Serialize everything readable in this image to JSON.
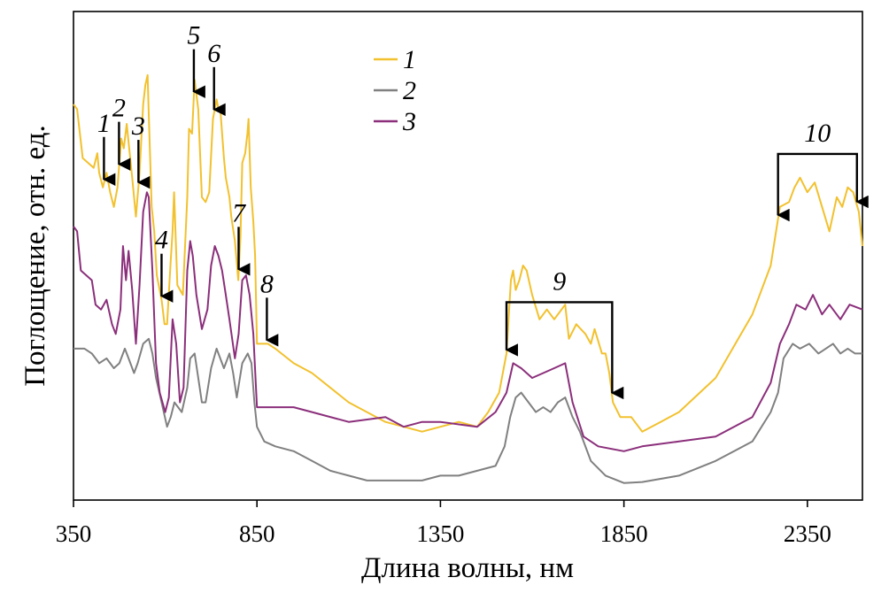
{
  "chart_data": {
    "type": "line",
    "xlabel": "Длина волны, нм",
    "ylabel": "Поглощение, отн. ед.",
    "xlim": [
      350,
      2500
    ],
    "ylim": [
      0,
      1
    ],
    "xticks": [
      "350",
      "850",
      "1350",
      "1850",
      "2350"
    ],
    "yticks": [],
    "grid": false,
    "legend": "top-center",
    "series": [
      {
        "name": "1",
        "color": "#f2c12e",
        "points": [
          [
            350,
            0.81
          ],
          [
            360,
            0.8
          ],
          [
            375,
            0.7
          ],
          [
            405,
            0.68
          ],
          [
            415,
            0.71
          ],
          [
            420,
            0.67
          ],
          [
            430,
            0.64
          ],
          [
            440,
            0.67
          ],
          [
            450,
            0.63
          ],
          [
            460,
            0.6
          ],
          [
            470,
            0.64
          ],
          [
            480,
            0.74
          ],
          [
            487,
            0.72
          ],
          [
            495,
            0.77
          ],
          [
            510,
            0.66
          ],
          [
            520,
            0.58
          ],
          [
            530,
            0.67
          ],
          [
            540,
            0.81
          ],
          [
            546,
            0.85
          ],
          [
            552,
            0.87
          ],
          [
            555,
            0.79
          ],
          [
            563,
            0.6
          ],
          [
            570,
            0.55
          ],
          [
            577,
            0.46
          ],
          [
            590,
            0.41
          ],
          [
            598,
            0.36
          ],
          [
            605,
            0.36
          ],
          [
            615,
            0.49
          ],
          [
            620,
            0.55
          ],
          [
            624,
            0.63
          ],
          [
            633,
            0.44
          ],
          [
            648,
            0.42
          ],
          [
            660,
            0.62
          ],
          [
            665,
            0.76
          ],
          [
            673,
            0.75
          ],
          [
            680,
            0.86
          ],
          [
            690,
            0.8
          ],
          [
            700,
            0.62
          ],
          [
            710,
            0.61
          ],
          [
            720,
            0.63
          ],
          [
            730,
            0.78
          ],
          [
            740,
            0.82
          ],
          [
            745,
            0.8
          ],
          [
            750,
            0.8
          ],
          [
            760,
            0.7
          ],
          [
            765,
            0.66
          ],
          [
            775,
            0.62
          ],
          [
            780,
            0.58
          ],
          [
            790,
            0.53
          ],
          [
            799,
            0.45
          ],
          [
            805,
            0.54
          ],
          [
            810,
            0.69
          ],
          [
            818,
            0.71
          ],
          [
            824,
            0.75
          ],
          [
            827,
            0.78
          ],
          [
            833,
            0.64
          ],
          [
            840,
            0.57
          ],
          [
            845,
            0.5
          ],
          [
            850,
            0.32
          ],
          [
            880,
            0.32
          ],
          [
            900,
            0.31
          ],
          [
            950,
            0.28
          ],
          [
            1000,
            0.26
          ],
          [
            1100,
            0.2
          ],
          [
            1200,
            0.16
          ],
          [
            1300,
            0.14
          ],
          [
            1350,
            0.15
          ],
          [
            1400,
            0.16
          ],
          [
            1450,
            0.15
          ],
          [
            1480,
            0.18
          ],
          [
            1510,
            0.22
          ],
          [
            1530,
            0.3
          ],
          [
            1542,
            0.45
          ],
          [
            1548,
            0.47
          ],
          [
            1555,
            0.43
          ],
          [
            1565,
            0.45
          ],
          [
            1575,
            0.48
          ],
          [
            1585,
            0.47
          ],
          [
            1600,
            0.42
          ],
          [
            1620,
            0.37
          ],
          [
            1640,
            0.39
          ],
          [
            1660,
            0.37
          ],
          [
            1690,
            0.4
          ],
          [
            1700,
            0.33
          ],
          [
            1720,
            0.36
          ],
          [
            1745,
            0.34
          ],
          [
            1760,
            0.32
          ],
          [
            1770,
            0.35
          ],
          [
            1790,
            0.3
          ],
          [
            1800,
            0.3
          ],
          [
            1810,
            0.26
          ],
          [
            1820,
            0.2
          ],
          [
            1840,
            0.17
          ],
          [
            1870,
            0.17
          ],
          [
            1900,
            0.14
          ],
          [
            1950,
            0.16
          ],
          [
            2000,
            0.18
          ],
          [
            2100,
            0.25
          ],
          [
            2200,
            0.38
          ],
          [
            2250,
            0.48
          ],
          [
            2275,
            0.6
          ],
          [
            2300,
            0.61
          ],
          [
            2315,
            0.64
          ],
          [
            2330,
            0.66
          ],
          [
            2350,
            0.63
          ],
          [
            2370,
            0.65
          ],
          [
            2390,
            0.6
          ],
          [
            2410,
            0.55
          ],
          [
            2430,
            0.62
          ],
          [
            2445,
            0.6
          ],
          [
            2460,
            0.64
          ],
          [
            2475,
            0.63
          ],
          [
            2490,
            0.59
          ],
          [
            2500,
            0.52
          ]
        ]
      },
      {
        "name": "2",
        "color": "#808080",
        "points": [
          [
            350,
            0.31
          ],
          [
            380,
            0.31
          ],
          [
            400,
            0.3
          ],
          [
            420,
            0.28
          ],
          [
            440,
            0.29
          ],
          [
            460,
            0.27
          ],
          [
            475,
            0.28
          ],
          [
            490,
            0.31
          ],
          [
            500,
            0.29
          ],
          [
            515,
            0.26
          ],
          [
            525,
            0.28
          ],
          [
            540,
            0.32
          ],
          [
            555,
            0.33
          ],
          [
            565,
            0.3
          ],
          [
            575,
            0.25
          ],
          [
            590,
            0.2
          ],
          [
            605,
            0.15
          ],
          [
            615,
            0.17
          ],
          [
            625,
            0.2
          ],
          [
            645,
            0.18
          ],
          [
            660,
            0.23
          ],
          [
            668,
            0.29
          ],
          [
            680,
            0.3
          ],
          [
            690,
            0.25
          ],
          [
            700,
            0.2
          ],
          [
            710,
            0.2
          ],
          [
            725,
            0.27
          ],
          [
            740,
            0.31
          ],
          [
            760,
            0.27
          ],
          [
            775,
            0.3
          ],
          [
            785,
            0.26
          ],
          [
            795,
            0.21
          ],
          [
            810,
            0.28
          ],
          [
            825,
            0.3
          ],
          [
            835,
            0.28
          ],
          [
            843,
            0.2
          ],
          [
            850,
            0.15
          ],
          [
            870,
            0.12
          ],
          [
            900,
            0.11
          ],
          [
            950,
            0.1
          ],
          [
            1000,
            0.08
          ],
          [
            1050,
            0.06
          ],
          [
            1100,
            0.05
          ],
          [
            1150,
            0.04
          ],
          [
            1200,
            0.04
          ],
          [
            1300,
            0.04
          ],
          [
            1350,
            0.05
          ],
          [
            1400,
            0.05
          ],
          [
            1450,
            0.06
          ],
          [
            1500,
            0.07
          ],
          [
            1525,
            0.11
          ],
          [
            1540,
            0.17
          ],
          [
            1555,
            0.21
          ],
          [
            1570,
            0.22
          ],
          [
            1590,
            0.2
          ],
          [
            1610,
            0.18
          ],
          [
            1630,
            0.19
          ],
          [
            1650,
            0.18
          ],
          [
            1670,
            0.2
          ],
          [
            1690,
            0.21
          ],
          [
            1710,
            0.17
          ],
          [
            1730,
            0.14
          ],
          [
            1760,
            0.08
          ],
          [
            1800,
            0.05
          ],
          [
            1850,
            0.035
          ],
          [
            1900,
            0.037
          ],
          [
            2000,
            0.05
          ],
          [
            2100,
            0.08
          ],
          [
            2200,
            0.12
          ],
          [
            2250,
            0.18
          ],
          [
            2270,
            0.22
          ],
          [
            2285,
            0.29
          ],
          [
            2310,
            0.32
          ],
          [
            2330,
            0.31
          ],
          [
            2355,
            0.32
          ],
          [
            2380,
            0.3
          ],
          [
            2400,
            0.31
          ],
          [
            2420,
            0.32
          ],
          [
            2440,
            0.3
          ],
          [
            2460,
            0.31
          ],
          [
            2480,
            0.3
          ],
          [
            2500,
            0.3
          ]
        ]
      },
      {
        "name": "3",
        "color": "#8b2f7b",
        "points": [
          [
            350,
            0.56
          ],
          [
            360,
            0.55
          ],
          [
            370,
            0.47
          ],
          [
            400,
            0.45
          ],
          [
            410,
            0.4
          ],
          [
            425,
            0.39
          ],
          [
            440,
            0.41
          ],
          [
            455,
            0.36
          ],
          [
            465,
            0.34
          ],
          [
            478,
            0.39
          ],
          [
            485,
            0.52
          ],
          [
            493,
            0.45
          ],
          [
            500,
            0.51
          ],
          [
            510,
            0.43
          ],
          [
            520,
            0.32
          ],
          [
            530,
            0.44
          ],
          [
            540,
            0.59
          ],
          [
            550,
            0.63
          ],
          [
            555,
            0.62
          ],
          [
            565,
            0.47
          ],
          [
            575,
            0.28
          ],
          [
            585,
            0.22
          ],
          [
            600,
            0.18
          ],
          [
            610,
            0.21
          ],
          [
            620,
            0.37
          ],
          [
            630,
            0.32
          ],
          [
            640,
            0.2
          ],
          [
            650,
            0.23
          ],
          [
            660,
            0.47
          ],
          [
            668,
            0.53
          ],
          [
            675,
            0.5
          ],
          [
            685,
            0.42
          ],
          [
            700,
            0.35
          ],
          [
            715,
            0.39
          ],
          [
            725,
            0.48
          ],
          [
            735,
            0.52
          ],
          [
            745,
            0.5
          ],
          [
            755,
            0.47
          ],
          [
            765,
            0.42
          ],
          [
            775,
            0.37
          ],
          [
            790,
            0.29
          ],
          [
            800,
            0.34
          ],
          [
            810,
            0.45
          ],
          [
            820,
            0.46
          ],
          [
            830,
            0.42
          ],
          [
            840,
            0.34
          ],
          [
            850,
            0.19
          ],
          [
            870,
            0.19
          ],
          [
            900,
            0.19
          ],
          [
            950,
            0.19
          ],
          [
            1000,
            0.18
          ],
          [
            1100,
            0.16
          ],
          [
            1200,
            0.17
          ],
          [
            1250,
            0.15
          ],
          [
            1300,
            0.16
          ],
          [
            1350,
            0.16
          ],
          [
            1450,
            0.15
          ],
          [
            1500,
            0.18
          ],
          [
            1530,
            0.22
          ],
          [
            1548,
            0.28
          ],
          [
            1570,
            0.27
          ],
          [
            1600,
            0.25
          ],
          [
            1630,
            0.26
          ],
          [
            1660,
            0.27
          ],
          [
            1690,
            0.28
          ],
          [
            1710,
            0.2
          ],
          [
            1740,
            0.13
          ],
          [
            1780,
            0.11
          ],
          [
            1850,
            0.1
          ],
          [
            1900,
            0.11
          ],
          [
            2000,
            0.12
          ],
          [
            2100,
            0.13
          ],
          [
            2200,
            0.17
          ],
          [
            2250,
            0.24
          ],
          [
            2275,
            0.32
          ],
          [
            2300,
            0.36
          ],
          [
            2320,
            0.4
          ],
          [
            2345,
            0.39
          ],
          [
            2365,
            0.42
          ],
          [
            2390,
            0.38
          ],
          [
            2410,
            0.4
          ],
          [
            2440,
            0.37
          ],
          [
            2465,
            0.4
          ],
          [
            2500,
            0.39
          ]
        ]
      }
    ],
    "annotations": [
      {
        "label": "1",
        "type": "arrow",
        "x": 433
      },
      {
        "label": "2",
        "type": "arrow",
        "x": 474
      },
      {
        "label": "3",
        "type": "arrow",
        "x": 527
      },
      {
        "label": "4",
        "type": "arrow",
        "x": 590
      },
      {
        "label": "5",
        "type": "arrow",
        "x": 678
      },
      {
        "label": "6",
        "type": "arrow",
        "x": 733
      },
      {
        "label": "7",
        "type": "arrow",
        "x": 800
      },
      {
        "label": "8",
        "type": "arrow",
        "x": 877
      },
      {
        "label": "9",
        "type": "bracket",
        "x_start": 1530,
        "x_end": 1818
      },
      {
        "label": "10",
        "type": "bracket",
        "x_start": 2270,
        "x_end": 2485
      }
    ]
  }
}
